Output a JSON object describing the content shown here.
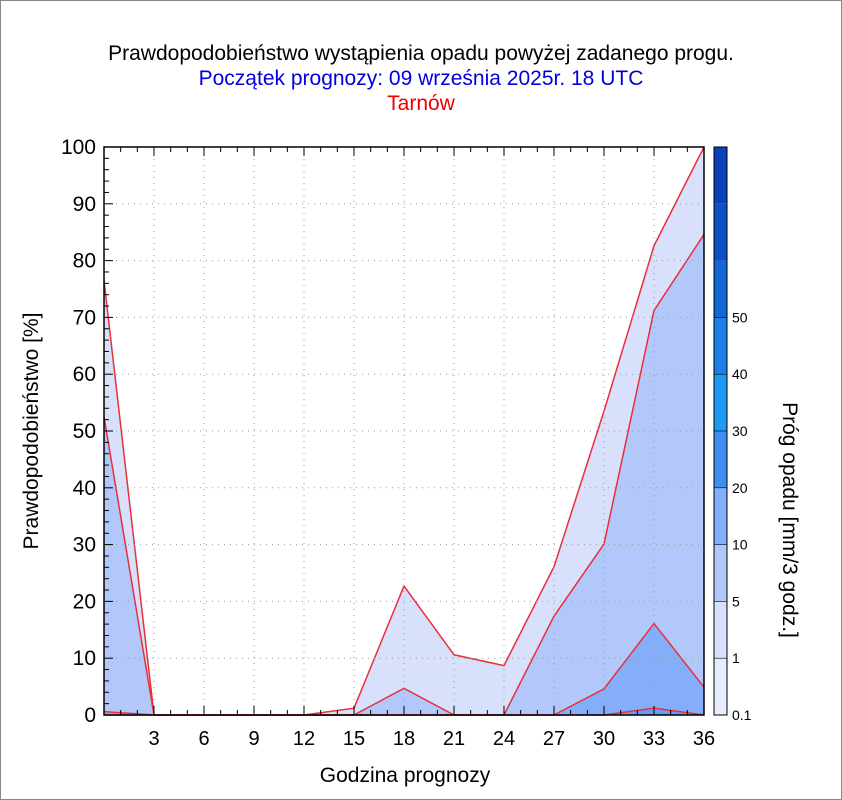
{
  "header": {
    "title": "Prawdopodobieństwo wystąpienia opadu powyżej zadanego progu.",
    "subtitle": "Początek prognozy: 09 września 2025r. 18 UTC",
    "location": "Tarnów"
  },
  "colors": {
    "title": "#000000",
    "subtitle": "#0000dd",
    "location": "#ee0000",
    "series_line": "#e8303a"
  },
  "chart_data": {
    "type": "area",
    "title": "Prawdopodobieństwo wystąpienia opadu powyżej zadanego progu.",
    "xlabel": "Godzina prognozy",
    "ylabel": "Prawdopodobieństwo [%]",
    "xlim": [
      0,
      36
    ],
    "ylim": [
      0,
      100
    ],
    "xticks": [
      3,
      6,
      9,
      12,
      15,
      18,
      21,
      24,
      27,
      30,
      33,
      36
    ],
    "yticks": [
      0,
      10,
      20,
      30,
      40,
      50,
      60,
      70,
      80,
      90,
      100
    ],
    "grid": true,
    "x": [
      0,
      3,
      6,
      9,
      12,
      15,
      18,
      21,
      24,
      27,
      30,
      33,
      36
    ],
    "series": [
      {
        "name": "0.1",
        "color": "#d8e0fc",
        "values": [
          76.5,
          0,
          0,
          0,
          0,
          1.2,
          22.7,
          10.6,
          8.7,
          26.1,
          53.5,
          82.6,
          100
        ]
      },
      {
        "name": "1",
        "color": "#b2c8fb",
        "values": [
          52.5,
          0,
          0,
          0,
          0,
          0,
          4.7,
          0,
          0,
          17.4,
          30.1,
          71.2,
          84.6
        ]
      },
      {
        "name": "5",
        "color": "#84aefa",
        "values": [
          0.6,
          0,
          0,
          0,
          0,
          0,
          0,
          0,
          0,
          0,
          4.6,
          16.1,
          4.9
        ]
      },
      {
        "name": "10",
        "color": "#6b9bf5",
        "values": [
          0,
          0,
          0,
          0,
          0,
          0,
          0,
          0,
          0,
          0,
          0,
          1.2,
          0
        ]
      }
    ],
    "colorbar": {
      "label": "Próg opadu [mm/3 godz.]",
      "levels": [
        "0.1",
        "1",
        "5",
        "10",
        "20",
        "30",
        "40",
        "50"
      ],
      "colors": [
        "#e6ecfd",
        "#d8e0fc",
        "#b2c8fb",
        "#84aefa",
        "#3f8ef2",
        "#1e9af5",
        "#1a7fe6",
        "#1366d8",
        "#0d4fc4",
        "#0a40b8"
      ]
    }
  }
}
